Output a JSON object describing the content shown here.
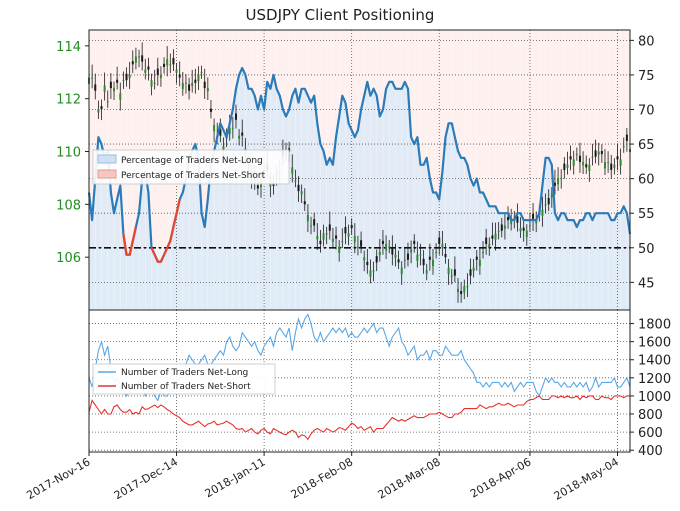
{
  "chart_data": [
    {
      "type": "line",
      "title": "USDJPY Client Positioning",
      "left_axis": {
        "ticks": [
          "114",
          "112",
          "110",
          "108",
          "106"
        ],
        "values": [
          114,
          112,
          110,
          108,
          106
        ],
        "range": [
          104,
          114.6
        ],
        "color": "#228b22"
      },
      "right_axis": {
        "ticks": [
          "80",
          "75",
          "70",
          "65",
          "60",
          "55",
          "50",
          "45"
        ],
        "values": [
          80,
          75,
          70,
          65,
          60,
          55,
          50,
          45
        ],
        "range": [
          41,
          81.5
        ]
      },
      "reference_line": 50,
      "legend": [
        "Percentage of Traders Net-Long",
        "Percentage of Traders Net-Short"
      ],
      "legend_position": "left",
      "series": [
        {
          "name": "Percentage of Traders Net-Long",
          "color": "#2b7bba",
          "x": [
            0,
            1,
            2,
            3,
            4,
            5,
            6,
            7,
            8,
            9,
            10,
            11,
            12,
            13,
            14,
            15,
            16,
            17,
            18,
            19,
            20,
            21,
            22,
            23,
            24,
            25,
            26,
            27,
            28,
            29,
            30,
            31,
            32,
            33,
            34,
            35,
            36,
            37,
            38,
            39,
            40,
            41,
            42,
            43,
            44,
            45,
            46,
            47,
            48,
            49,
            50,
            51,
            52,
            53,
            54,
            55,
            56,
            57,
            58,
            59,
            60,
            61,
            62,
            63,
            64,
            65,
            66,
            67,
            68,
            69,
            70,
            71,
            72,
            73,
            74,
            75,
            76,
            77,
            78,
            79,
            80,
            81,
            82,
            83,
            84,
            85,
            86,
            87,
            88,
            89,
            90,
            91,
            92,
            93,
            94,
            95,
            96,
            97,
            98,
            99,
            100,
            101,
            102,
            103,
            104,
            105,
            106,
            107,
            108,
            109,
            110,
            111,
            112,
            113,
            114,
            115,
            116,
            117,
            118,
            119,
            120,
            121,
            122,
            123,
            124,
            125,
            126,
            127,
            128,
            129,
            130,
            131,
            132,
            133,
            134,
            135,
            136,
            137,
            138,
            139,
            140,
            141,
            142,
            143,
            144,
            145,
            146,
            147,
            148,
            149,
            150,
            151,
            152,
            153,
            154,
            155,
            156,
            157,
            158,
            159,
            160,
            161,
            162,
            163,
            164,
            165,
            166,
            167,
            168,
            169,
            170,
            171,
            172,
            173
          ],
          "values": [
            58,
            54,
            60,
            66,
            65,
            63,
            64,
            58,
            55,
            57,
            59,
            52,
            49,
            49,
            51,
            53,
            55,
            60,
            61,
            58,
            50,
            49,
            48,
            48,
            49,
            50,
            51,
            53,
            55,
            57,
            58,
            60,
            63,
            64,
            65,
            63,
            55,
            53,
            57,
            62,
            64,
            66,
            68,
            67,
            66,
            68,
            70,
            73,
            75,
            76,
            75,
            73,
            73,
            72,
            70,
            72,
            70,
            74,
            73,
            75,
            73,
            72,
            70,
            69,
            70,
            72,
            73,
            71,
            73,
            73,
            72,
            71,
            72,
            68,
            65,
            64,
            62,
            63,
            62,
            66,
            69,
            72,
            71,
            68,
            67,
            66,
            67,
            70,
            72,
            74,
            72,
            73,
            72,
            69,
            70,
            73,
            74,
            74,
            73,
            73,
            73,
            74,
            73,
            66,
            65,
            66,
            62,
            62,
            63,
            60,
            58,
            58,
            57,
            61,
            66,
            68,
            68,
            66,
            64,
            63,
            63,
            62,
            60,
            59,
            60,
            58,
            58,
            57,
            56,
            56,
            56,
            55,
            55,
            55,
            55,
            54,
            54,
            55,
            55,
            54,
            54,
            54,
            54,
            54,
            55,
            59,
            63,
            63,
            62,
            55,
            54,
            55,
            55,
            54,
            54,
            54,
            53,
            54,
            54,
            55,
            55,
            54,
            55,
            55,
            55,
            55,
            55,
            54,
            54,
            55,
            55,
            56,
            55,
            52
          ],
          "net_short_segments": [
            [
              11,
              15
            ],
            [
              20,
              29
            ]
          ]
        }
      ]
    },
    {
      "type": "line",
      "y_axis": {
        "ticks": [
          "1800",
          "1600",
          "1400",
          "1200",
          "1000",
          "800",
          "600",
          "400"
        ],
        "values": [
          1800,
          1600,
          1400,
          1200,
          1000,
          800,
          600,
          400
        ],
        "range": [
          380,
          1950
        ]
      },
      "x_labels": [
        "2017-Nov-16",
        "2017-Dec-14",
        "2018-Jan-11",
        "2018-Feb-08",
        "2018-Mar-08",
        "2018-Apr-06",
        "2018-May-04"
      ],
      "legend": [
        "Number of Traders Net-Long",
        "Number of Traders Net-Short"
      ],
      "legend_position": "left",
      "series": [
        {
          "name": "Number of Traders Net-Long",
          "color": "#5aa7e6",
          "values": [
            1200,
            1100,
            1300,
            1500,
            1600,
            1450,
            1550,
            1300,
            1150,
            1200,
            1100,
            1050,
            1000,
            1050,
            1100,
            1050,
            1150,
            1100,
            1000,
            1050,
            1100,
            1000,
            950,
            1050,
            1000,
            1000,
            1050,
            1100,
            1150,
            1200,
            1200,
            1350,
            1450,
            1400,
            1350,
            1350,
            1400,
            1450,
            1350,
            1350,
            1400,
            1450,
            1500,
            1450,
            1600,
            1650,
            1550,
            1500,
            1550,
            1700,
            1650,
            1600,
            1550,
            1600,
            1500,
            1450,
            1550,
            1600,
            1650,
            1550,
            1700,
            1750,
            1700,
            1650,
            1750,
            1500,
            1700,
            1850,
            1750,
            1850,
            1900,
            1800,
            1650,
            1600,
            1700,
            1600,
            1650,
            1700,
            1750,
            1700,
            1750,
            1700,
            1750,
            1650,
            1700,
            1650,
            1650,
            1700,
            1750,
            1700,
            1750,
            1800,
            1700,
            1750,
            1750,
            1650,
            1550,
            1650,
            1700,
            1750,
            1600,
            1550,
            1450,
            1500,
            1550,
            1400,
            1450,
            1450,
            1500,
            1400,
            1500,
            1500,
            1450,
            1450,
            1550,
            1500,
            1450,
            1450,
            1450,
            1500,
            1400,
            1350,
            1300,
            1250,
            1150,
            1150,
            1100,
            1150,
            1100,
            1150,
            1150,
            1150,
            1100,
            1150,
            1100,
            1150,
            1050,
            1100,
            1150,
            1100,
            1150,
            1150,
            1150,
            1050,
            1000,
            1100,
            1200,
            1150,
            1200,
            1150,
            1150,
            1100,
            1150,
            1100,
            1100,
            1150,
            1100,
            1150,
            1100,
            1150,
            1050,
            1100,
            1200,
            1100,
            1150,
            1150,
            1150,
            1150,
            1200,
            1100,
            1100,
            1150,
            1200,
            1100
          ]
        },
        {
          "name": "Number of Traders Net-Short",
          "color": "#e6322e",
          "values": [
            820,
            950,
            900,
            850,
            800,
            850,
            800,
            800,
            880,
            900,
            850,
            820,
            820,
            850,
            800,
            820,
            800,
            880,
            850,
            860,
            880,
            900,
            870,
            900,
            880,
            850,
            830,
            800,
            780,
            760,
            720,
            700,
            680,
            680,
            700,
            720,
            690,
            660,
            690,
            700,
            720,
            680,
            690,
            700,
            720,
            700,
            680,
            640,
            630,
            640,
            600,
            620,
            640,
            600,
            580,
            620,
            640,
            600,
            580,
            640,
            620,
            600,
            580,
            570,
            600,
            620,
            600,
            540,
            570,
            560,
            520,
            580,
            620,
            640,
            620,
            600,
            640,
            620,
            600,
            620,
            650,
            640,
            620,
            660,
            700,
            680,
            640,
            660,
            620,
            640,
            660,
            600,
            640,
            640,
            640,
            680,
            720,
            760,
            740,
            720,
            740,
            720,
            740,
            760,
            780,
            760,
            760,
            760,
            780,
            800,
            800,
            800,
            820,
            800,
            780,
            760,
            760,
            800,
            800,
            820,
            860,
            860,
            860,
            860,
            860,
            900,
            880,
            860,
            880,
            880,
            900,
            920,
            900,
            900,
            920,
            900,
            880,
            900,
            900,
            900,
            940,
            960,
            960,
            980,
            1000,
            960,
            960,
            960,
            1000,
            1000,
            980,
            1000,
            980,
            1000,
            980,
            980,
            1000,
            960,
            1000,
            980,
            1000,
            1000,
            960,
            960,
            1000,
            980,
            980,
            960,
            1000,
            1000,
            1000,
            980,
            1000,
            1000
          ]
        }
      ]
    }
  ]
}
